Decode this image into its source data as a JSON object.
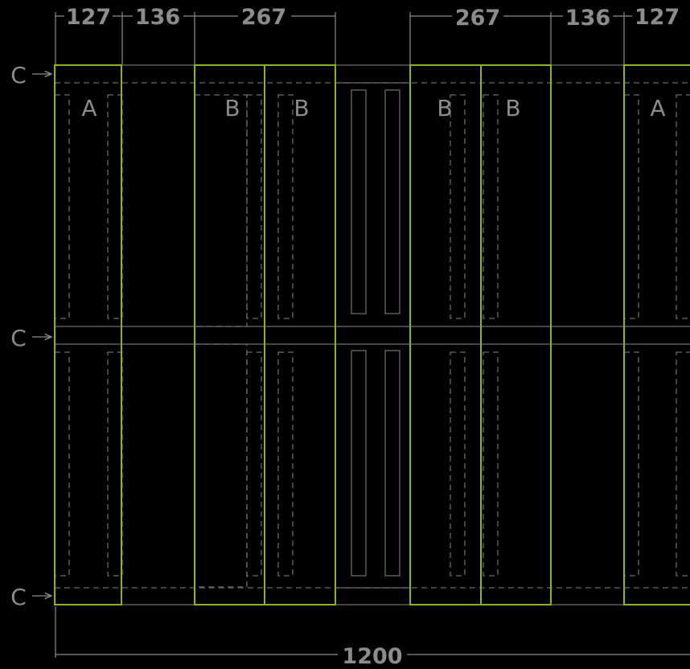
{
  "dimensions": {
    "top": [
      "127",
      "136",
      "267",
      "267",
      "136",
      "127"
    ],
    "bottom": "1200"
  },
  "labels": {
    "boards": [
      "A",
      "B",
      "B",
      "B",
      "B",
      "A"
    ],
    "rows": [
      "C",
      "C",
      "C"
    ]
  },
  "colors": {
    "background": "#000000",
    "board_outline": "#8db320",
    "dimension": "#8c8c8c",
    "hidden_lines": "#6a6a6a"
  }
}
